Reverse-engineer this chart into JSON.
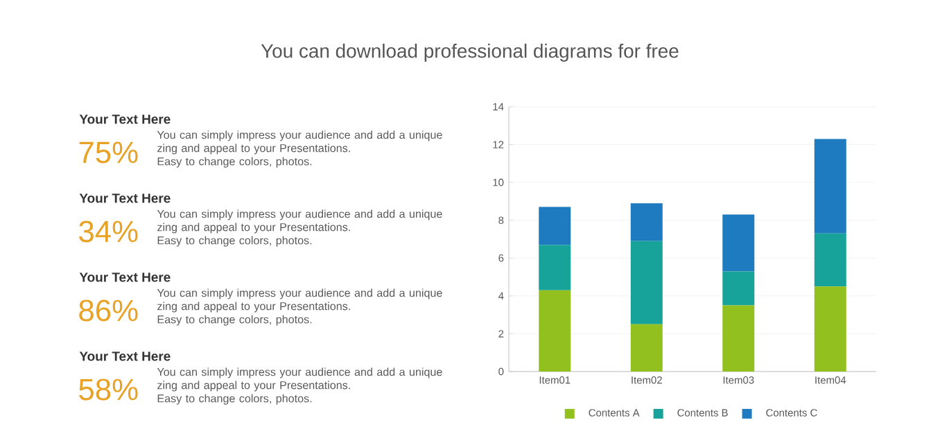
{
  "chart_data": [
    {
      "type": "other",
      "title": "You can download professional diagrams for free",
      "annotations": [
        "Your Text Here",
        "75%",
        "You can simply impress your audience and add a unique zing and appeal to your Presentations.",
        "Easy to change colors, photos.",
        "Your Text Here",
        "34%",
        "You can simply impress your audience and add a unique zing and appeal to your Presentations.",
        "Easy to change colors, photos.",
        "Your Text Here",
        "86%",
        "You can simply impress your audience and add a unique zing and appeal to your Presentations.",
        "Easy to change colors, photos.",
        "Your Text Here",
        "58%",
        "You can simply impress your audience and add a unique zing and appeal to your Presentations.",
        "Easy to change colors, photos."
      ]
    },
    {
      "type": "bar",
      "stacked": true,
      "categories": [
        "Item01",
        "Item02",
        "Item03",
        "Item04"
      ],
      "series": [
        {
          "name": "Contents A",
          "color": "#92c01f",
          "values": [
            4.3,
            2.5,
            3.5,
            4.5
          ]
        },
        {
          "name": "Contents B",
          "color": "#17a39a",
          "values": [
            2.4,
            4.4,
            1.8,
            2.8
          ]
        },
        {
          "name": "Contents C",
          "color": "#1f7bc0",
          "values": [
            2.0,
            2.0,
            3.0,
            5.0
          ]
        }
      ],
      "ylim": [
        0,
        14
      ],
      "yticks": [
        0,
        2,
        4,
        6,
        8,
        10,
        12,
        14
      ],
      "grid": "y",
      "legend": "bottom"
    }
  ]
}
